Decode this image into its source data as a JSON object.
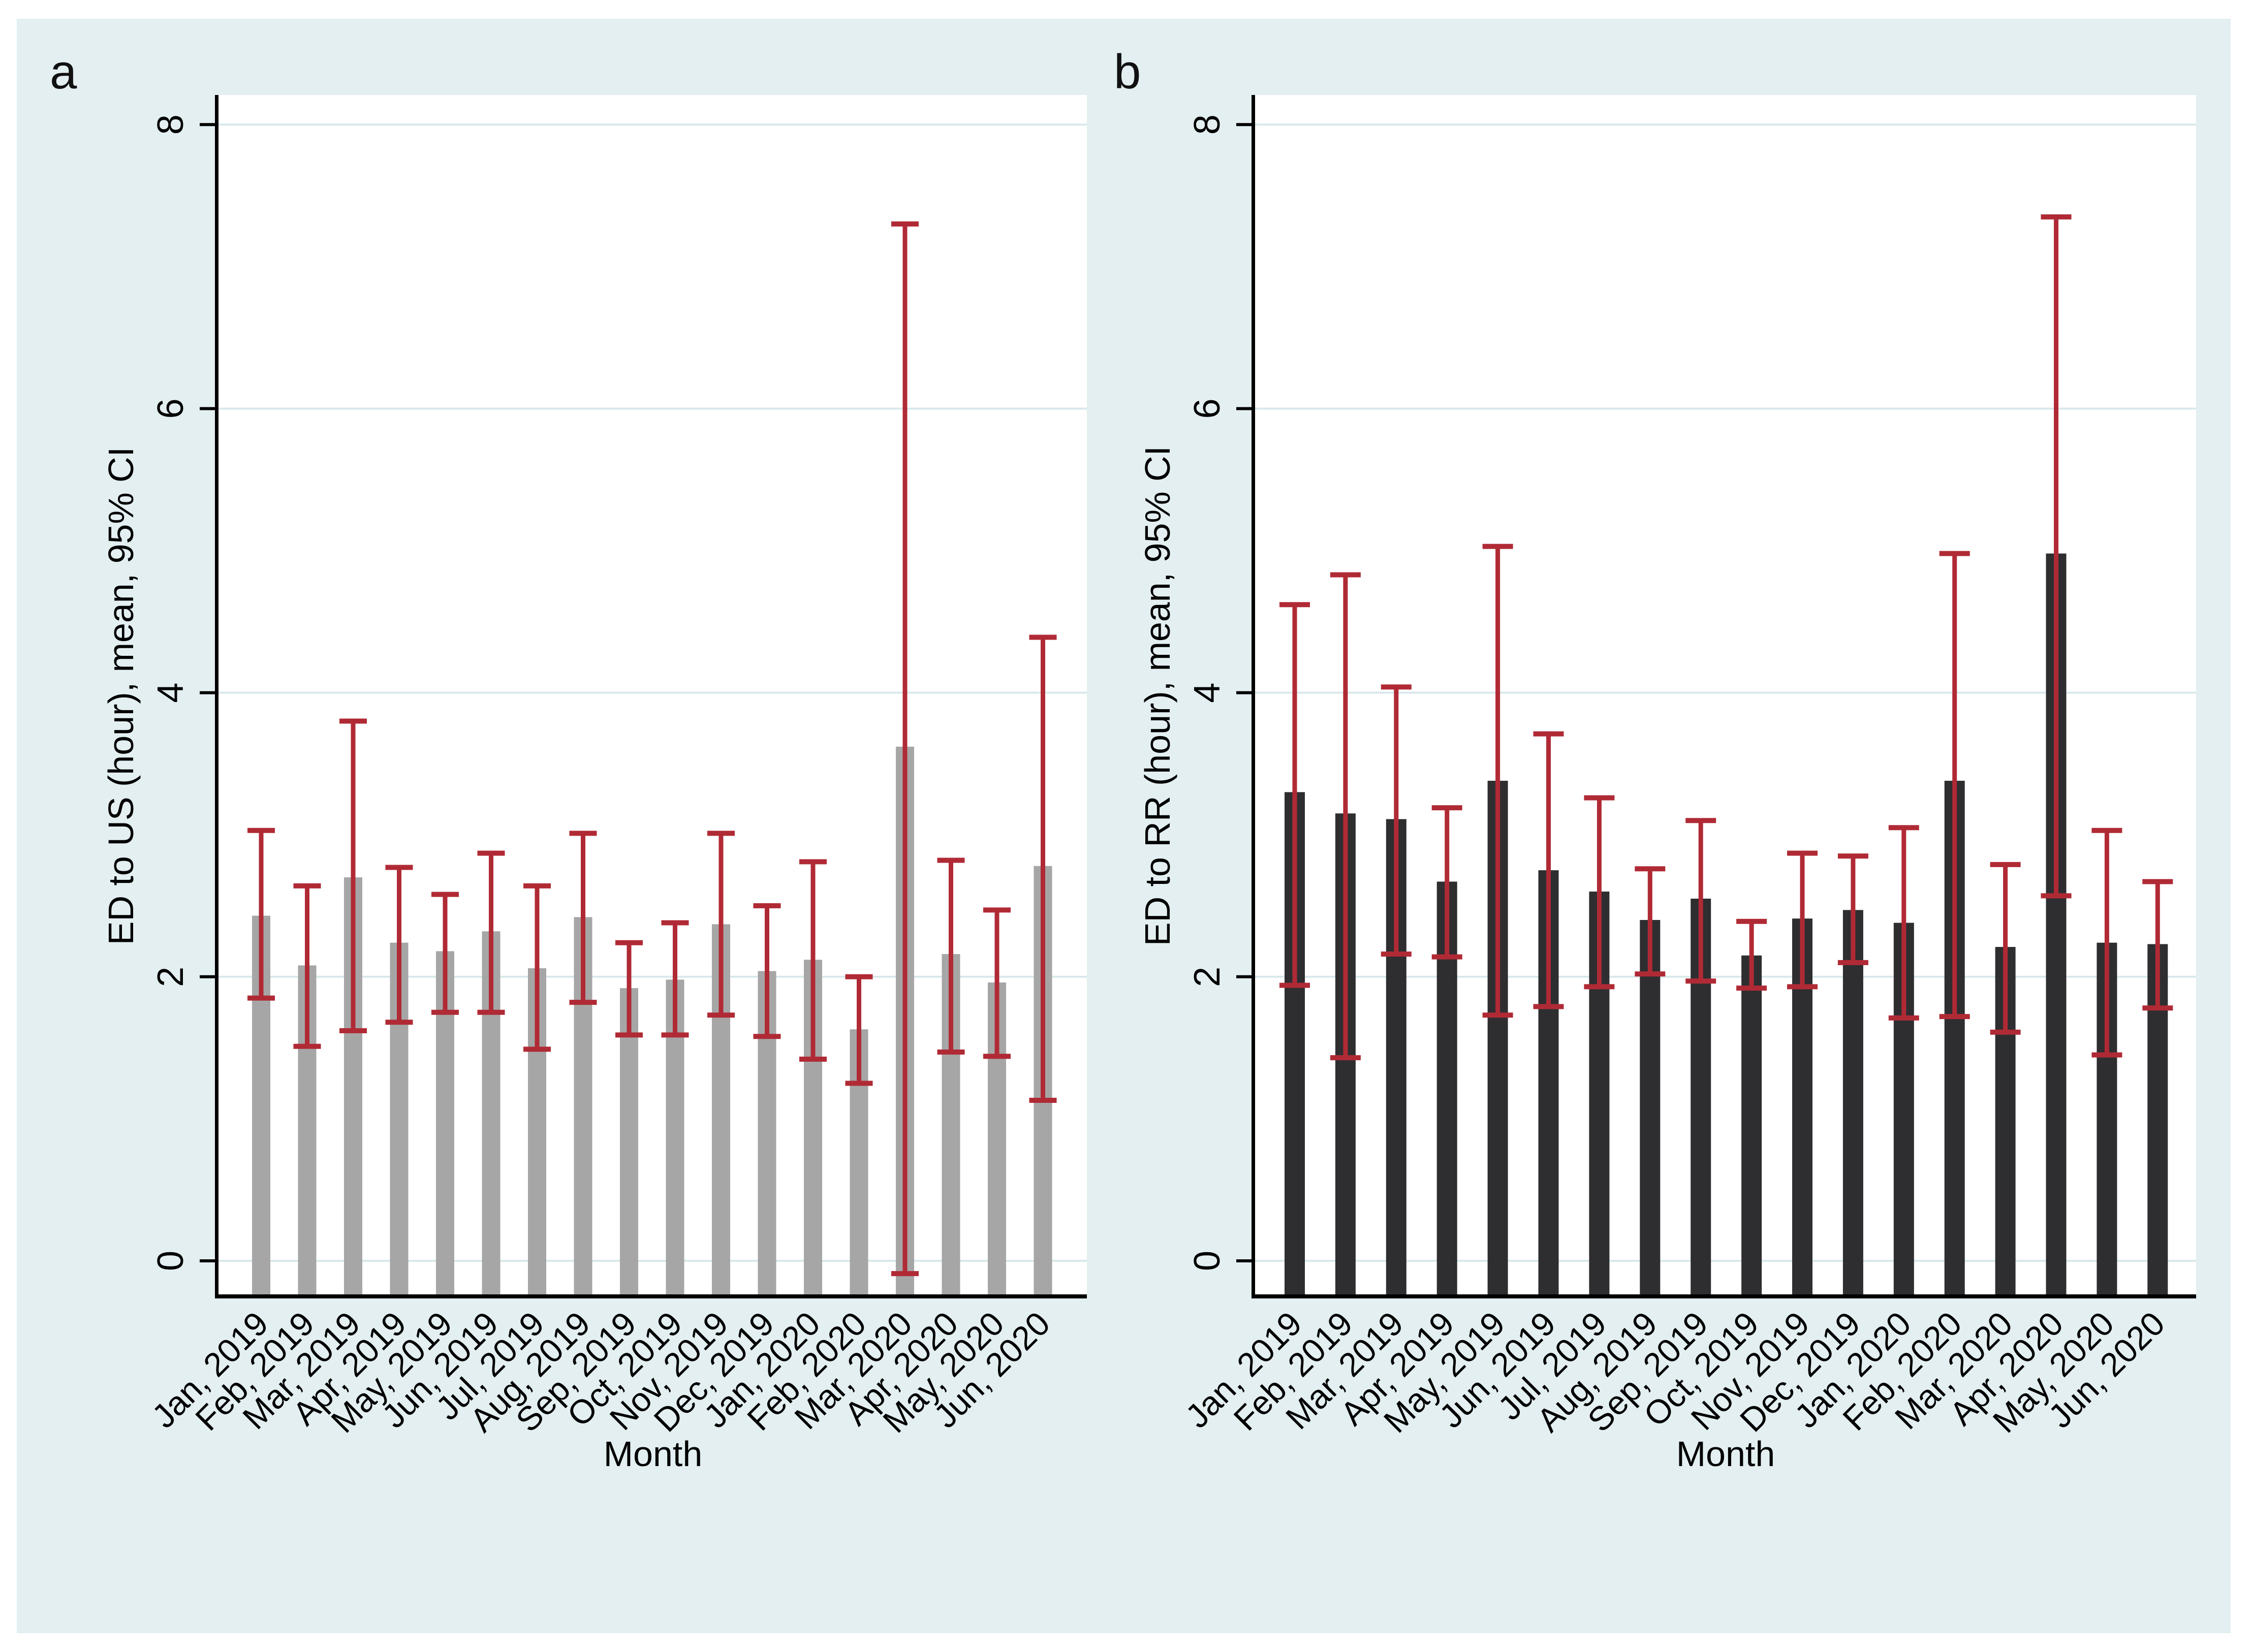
{
  "figure": {
    "style": "stata-twoway-bar",
    "background_color": "#e3eff1",
    "plot_background_color": "#ffffff",
    "gridline_color": "#d9e9eb",
    "axis_color": "#000000"
  },
  "chart_data": [
    {
      "type": "bar",
      "panel_label": "a",
      "ylabel": "ED to US (hour), mean, 95% CI",
      "xlabel": "Month",
      "ylim": [
        0,
        8
      ],
      "yticks": [
        0,
        2,
        4,
        6,
        8
      ],
      "grid": true,
      "legend": "none",
      "bar_color": "#a6a6a6",
      "error_bar_color": "#b02a35",
      "categories": [
        "Jan, 2019",
        "Feb, 2019",
        "Mar, 2019",
        "Apr, 2019",
        "May, 2019",
        "Jun, 2019",
        "Jul, 2019",
        "Aug, 2019",
        "Sep, 2019",
        "Oct, 2019",
        "Nov, 2019",
        "Dec, 2019",
        "Jan, 2020",
        "Feb, 2020",
        "Mar, 2020",
        "Apr, 2020",
        "May, 2020",
        "Jun, 2020"
      ],
      "series": [
        {
          "name": "mean",
          "values": [
            2.43,
            2.08,
            2.7,
            2.24,
            2.18,
            2.32,
            2.06,
            2.42,
            1.92,
            1.98,
            2.37,
            2.04,
            2.12,
            1.63,
            3.62,
            2.16,
            1.96,
            2.78
          ]
        },
        {
          "name": "ci_lower",
          "values": [
            1.85,
            1.51,
            1.62,
            1.68,
            1.75,
            1.75,
            1.49,
            1.82,
            1.59,
            1.59,
            1.73,
            1.58,
            1.42,
            1.25,
            -0.09,
            1.47,
            1.44,
            1.13
          ]
        },
        {
          "name": "ci_upper",
          "values": [
            3.03,
            2.64,
            3.8,
            2.77,
            2.58,
            2.87,
            2.64,
            3.01,
            2.24,
            2.38,
            3.01,
            2.5,
            2.81,
            2.0,
            7.3,
            2.82,
            2.47,
            4.39
          ]
        }
      ]
    },
    {
      "type": "bar",
      "panel_label": "b",
      "ylabel": "ED to RR (hour), mean, 95% CI",
      "xlabel": "Month",
      "ylim": [
        0,
        8
      ],
      "yticks": [
        0,
        2,
        4,
        6,
        8
      ],
      "grid": true,
      "legend": "none",
      "bar_color": "#2e2e31",
      "error_bar_color": "#b02a35",
      "categories": [
        "Jan, 2019",
        "Feb, 2019",
        "Mar, 2019",
        "Apr, 2019",
        "May, 2019",
        "Jun, 2019",
        "Jul, 2019",
        "Aug, 2019",
        "Sep, 2019",
        "Oct, 2019",
        "Nov, 2019",
        "Dec, 2019",
        "Jan, 2020",
        "Feb, 2020",
        "Mar, 2020",
        "Apr, 2020",
        "May, 2020",
        "Jun, 2020"
      ],
      "series": [
        {
          "name": "mean",
          "values": [
            3.3,
            3.15,
            3.11,
            2.67,
            3.38,
            2.75,
            2.6,
            2.4,
            2.55,
            2.15,
            2.41,
            2.47,
            2.38,
            3.38,
            2.21,
            4.98,
            2.24,
            2.23
          ]
        },
        {
          "name": "ci_lower",
          "values": [
            1.94,
            1.43,
            2.16,
            2.14,
            1.73,
            1.79,
            1.93,
            2.02,
            1.97,
            1.92,
            1.93,
            2.1,
            1.71,
            1.72,
            1.61,
            2.57,
            1.45,
            1.78
          ]
        },
        {
          "name": "ci_upper",
          "values": [
            4.62,
            4.83,
            4.04,
            3.19,
            5.03,
            3.71,
            3.26,
            2.76,
            3.1,
            2.39,
            2.87,
            2.85,
            3.05,
            4.98,
            2.79,
            7.35,
            3.03,
            2.67
          ]
        }
      ]
    }
  ]
}
